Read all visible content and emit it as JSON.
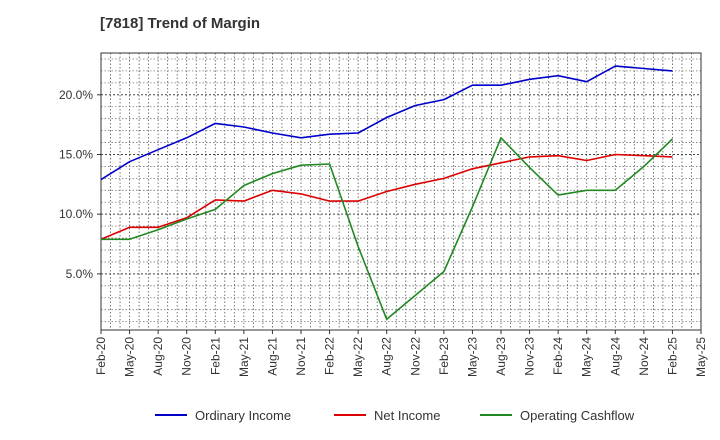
{
  "chart_data": {
    "type": "line",
    "title": "[7818]  Trend of Margin",
    "xlabel": "",
    "ylabel": "",
    "x": [
      "Feb-20",
      "May-20",
      "Aug-20",
      "Nov-20",
      "Feb-21",
      "May-21",
      "Aug-21",
      "Nov-21",
      "Feb-22",
      "May-22",
      "Aug-22",
      "Nov-22",
      "Feb-23",
      "May-23",
      "Aug-23",
      "Nov-23",
      "Feb-24",
      "May-24",
      "Aug-24",
      "Nov-24",
      "Feb-25"
    ],
    "x_ticks": [
      "Feb-20",
      "May-20",
      "Aug-20",
      "Nov-20",
      "Feb-21",
      "May-21",
      "Aug-21",
      "Nov-21",
      "Feb-22",
      "May-22",
      "Aug-22",
      "Nov-22",
      "Feb-23",
      "May-23",
      "Aug-23",
      "Nov-23",
      "Feb-24",
      "May-24",
      "Aug-24",
      "Nov-24",
      "Feb-25",
      "May-25"
    ],
    "y_ticks": [
      5.0,
      10.0,
      15.0,
      20.0
    ],
    "y_tick_labels": [
      "5.0%",
      "10.0%",
      "15.0%",
      "20.0%"
    ],
    "ylim": [
      0.3,
      23.5
    ],
    "grid": true,
    "legend_position": "bottom",
    "series": [
      {
        "name": "Ordinary Income",
        "color": "#0000cc",
        "values": [
          12.9,
          14.4,
          15.4,
          16.4,
          17.6,
          17.3,
          16.8,
          16.4,
          16.7,
          16.8,
          18.1,
          19.1,
          19.6,
          20.8,
          20.8,
          21.3,
          21.6,
          21.1,
          22.4,
          22.2,
          22.0
        ]
      },
      {
        "name": "Net Income",
        "color": "#dd0000",
        "values": [
          7.9,
          8.9,
          8.9,
          9.7,
          11.2,
          11.1,
          12.0,
          11.7,
          11.1,
          11.1,
          11.9,
          12.5,
          13.0,
          13.8,
          14.3,
          14.8,
          14.9,
          14.5,
          15.0,
          14.9,
          14.8
        ]
      },
      {
        "name": "Operating Cashflow",
        "color": "#228822",
        "values": [
          7.9,
          7.9,
          8.7,
          9.6,
          10.4,
          12.4,
          13.4,
          14.1,
          14.2,
          7.3,
          1.2,
          3.2,
          5.2,
          10.6,
          16.4,
          13.9,
          11.6,
          12.0,
          12.0,
          14.0,
          16.3
        ]
      }
    ]
  }
}
